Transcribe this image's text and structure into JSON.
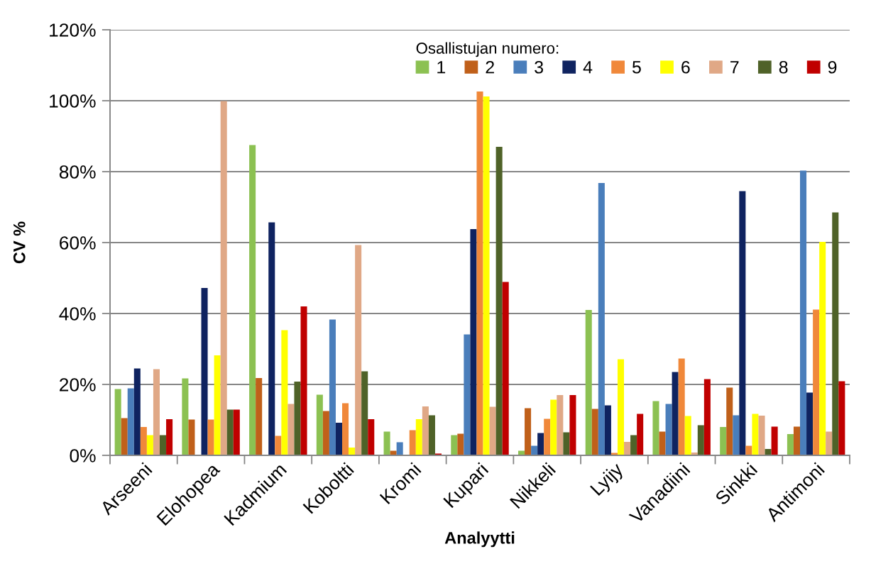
{
  "chart_data": {
    "type": "bar",
    "xlabel": "Analyytti",
    "ylabel": "CV %",
    "legend_title": "Osallistujan numero:",
    "categories": [
      "Arseeni",
      "Elohopea",
      "Kadmium",
      "Koboltti",
      "Kromi",
      "Kupari",
      "Nikkeli",
      "Lyijy",
      "Vanadiini",
      "Sinkki",
      "Antimoni"
    ],
    "series": [
      {
        "name": "1",
        "color": "#8cc152",
        "values": [
          18.7,
          21.7,
          87.5,
          17.1,
          6.7,
          5.7,
          1.3,
          41,
          15.3,
          8,
          6
        ]
      },
      {
        "name": "2",
        "color": "#c0601a",
        "values": [
          10.5,
          10.1,
          21.8,
          12.5,
          1.3,
          6.1,
          13.3,
          13.1,
          6.7,
          19.1,
          8.1
        ]
      },
      {
        "name": "3",
        "color": "#4a7ebb",
        "values": [
          18.9,
          null,
          null,
          38.3,
          3.7,
          34.1,
          2.7,
          76.8,
          14.5,
          11.3,
          80.3
        ]
      },
      {
        "name": "4",
        "color": "#0f2360",
        "values": [
          24.5,
          47.2,
          65.7,
          9.2,
          null,
          63.8,
          6.3,
          14.1,
          23.5,
          74.5,
          17.7
        ]
      },
      {
        "name": "5",
        "color": "#f0883a",
        "values": [
          8,
          10.1,
          5.5,
          14.7,
          7.1,
          102.6,
          10.3,
          0.7,
          27.3,
          2.7,
          41.1
        ]
      },
      {
        "name": "6",
        "color": "#ffff00",
        "values": [
          5.7,
          28.2,
          35.3,
          2.2,
          10.2,
          101.2,
          15.7,
          27.1,
          11.1,
          11.7,
          60.2
        ]
      },
      {
        "name": "7",
        "color": "#e0a886",
        "values": [
          24.3,
          99.9,
          14.5,
          59.3,
          13.8,
          13.7,
          17,
          3.8,
          0.8,
          11.2,
          6.7
        ]
      },
      {
        "name": "8",
        "color": "#4f6228",
        "values": [
          5.7,
          12.9,
          20.8,
          23.7,
          11.3,
          87,
          6.5,
          5.7,
          8.5,
          1.8,
          68.5
        ]
      },
      {
        "name": "9",
        "color": "#c00000",
        "values": [
          10.2,
          12.9,
          42,
          10.2,
          0.5,
          48.9,
          17,
          11.7,
          21.5,
          8.1,
          20.9
        ]
      }
    ],
    "ylim": [
      0,
      120
    ],
    "yticks": [
      {
        "value": 0,
        "label": "0%"
      },
      {
        "value": 20,
        "label": "20%"
      },
      {
        "value": 40,
        "label": "40%"
      },
      {
        "value": 60,
        "label": "60%"
      },
      {
        "value": 80,
        "label": "80%"
      },
      {
        "value": 100,
        "label": "100%"
      },
      {
        "value": 120,
        "label": "120%"
      }
    ],
    "grid": "y",
    "legend": "top right"
  }
}
